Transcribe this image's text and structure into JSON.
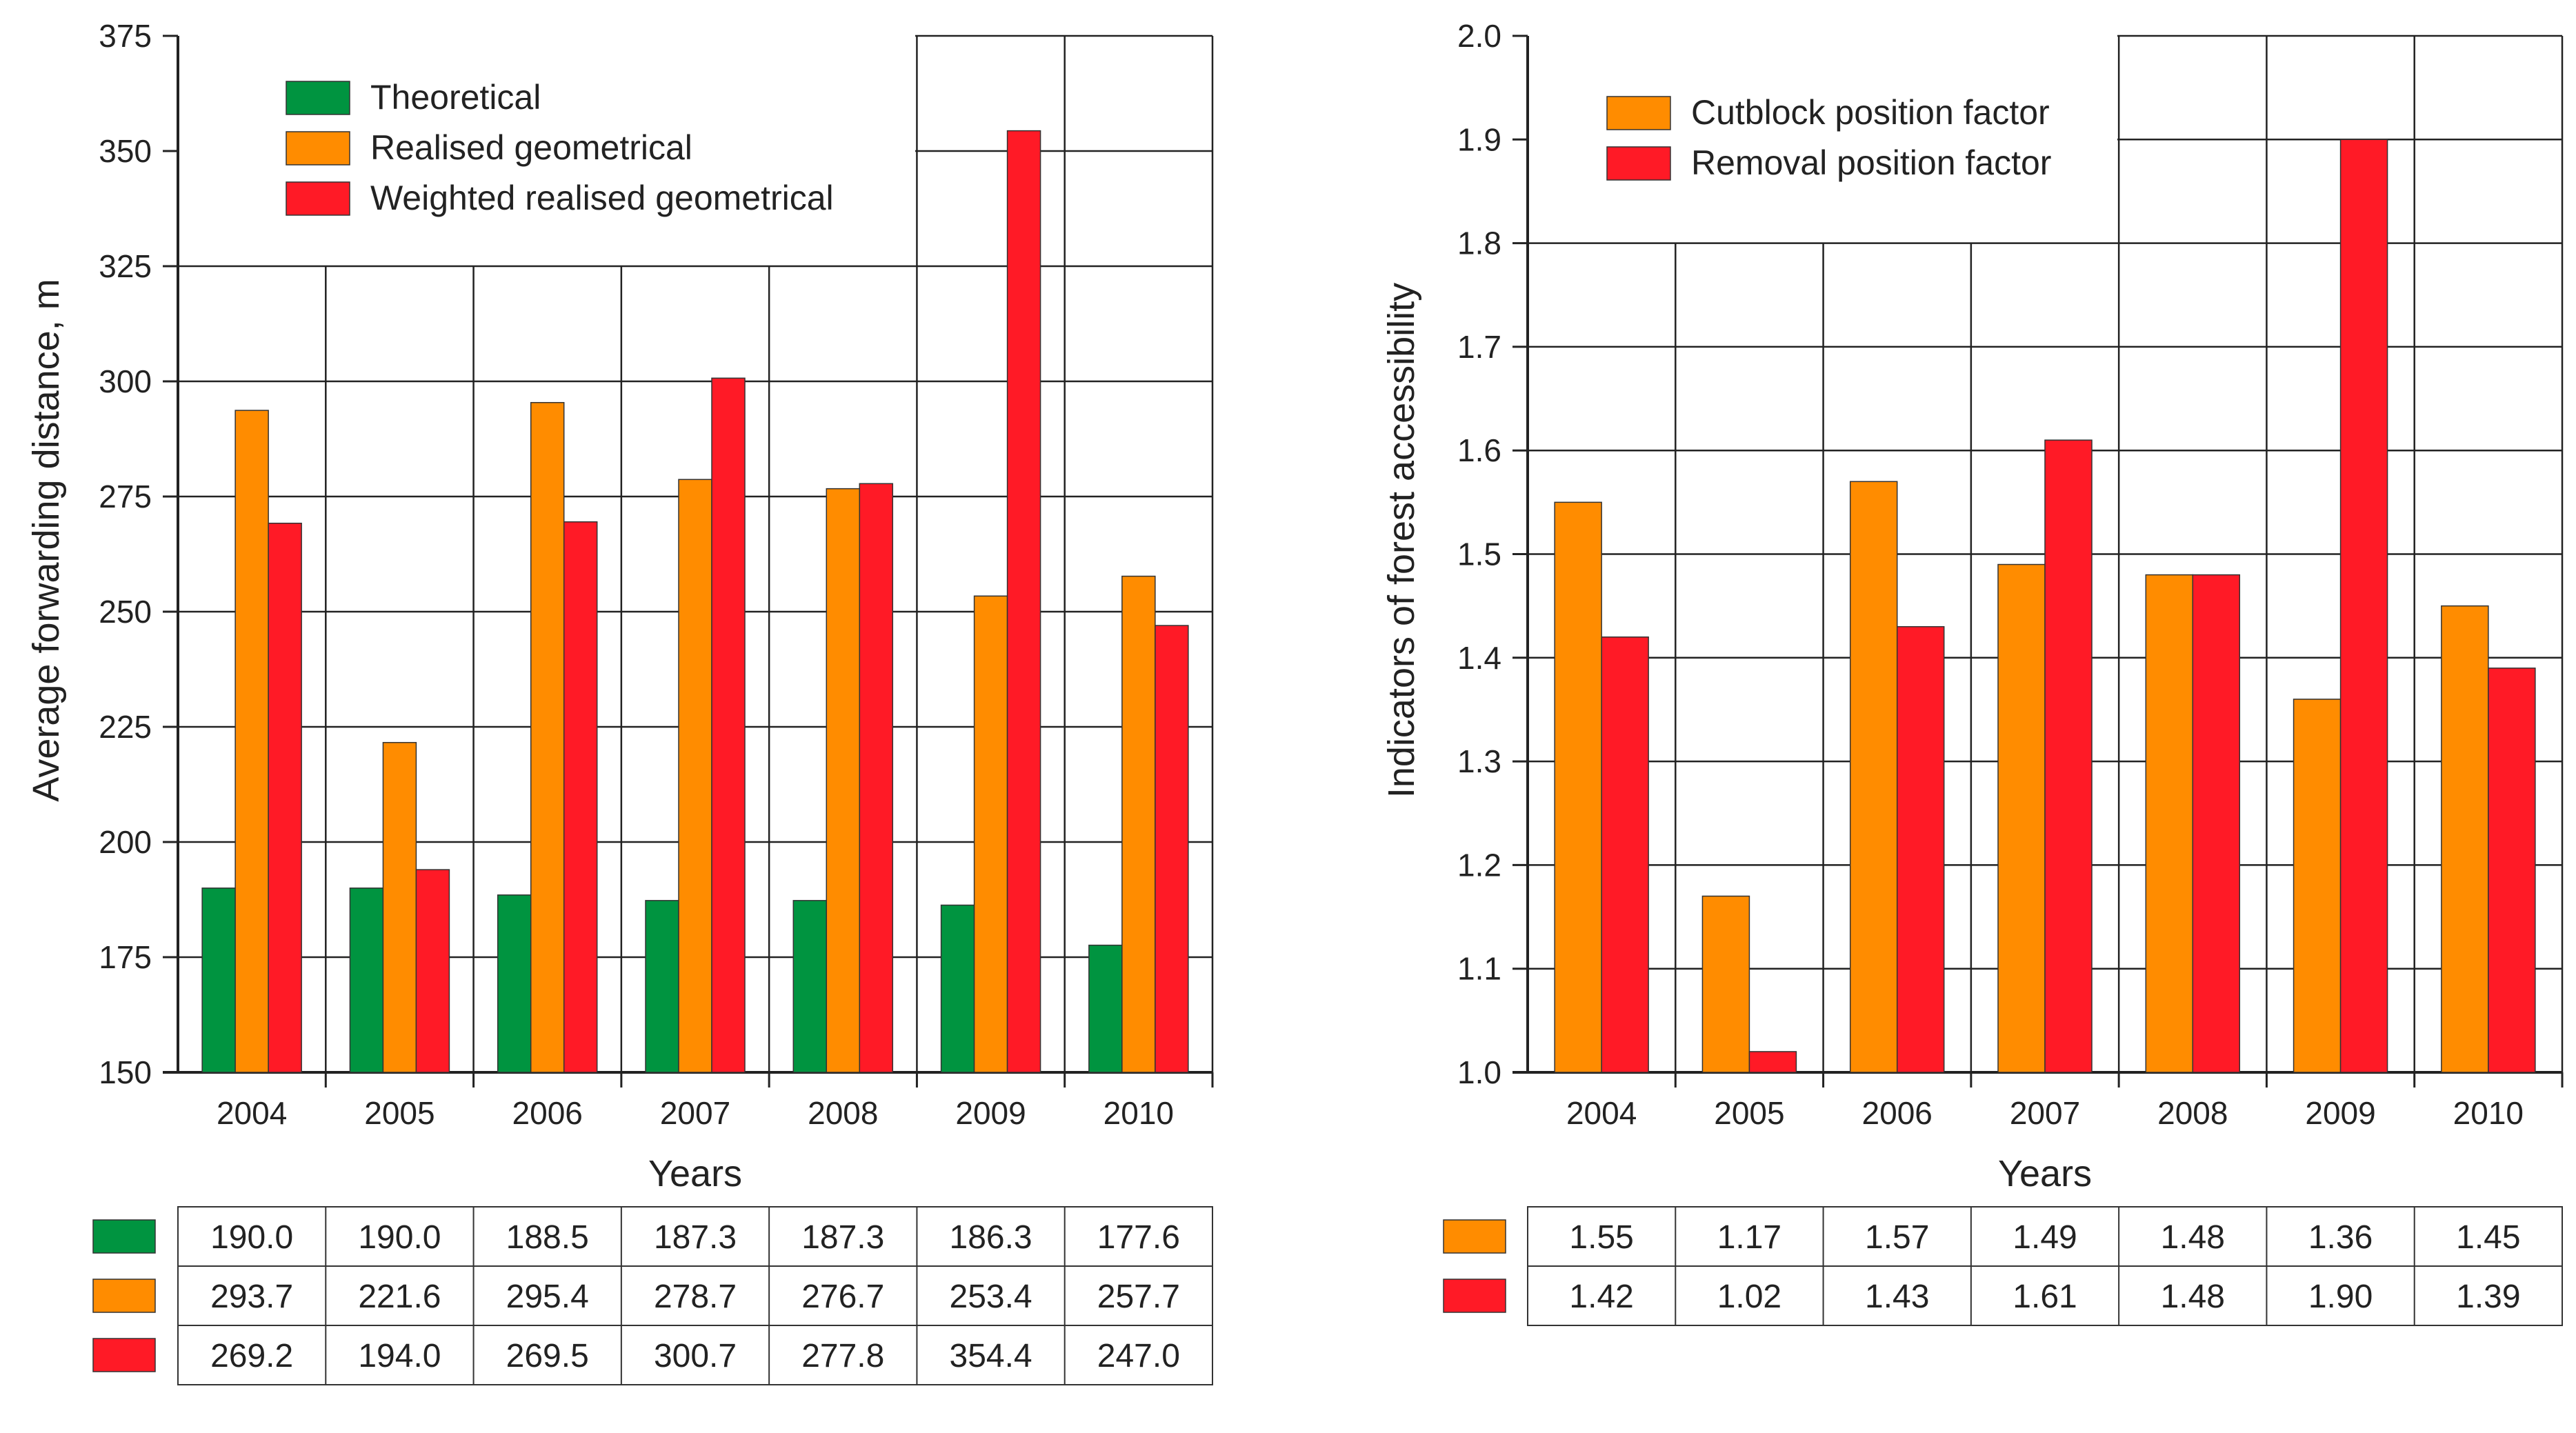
{
  "colors": {
    "green": "#009440",
    "orange": "#ff8c00",
    "red": "#ff1a26",
    "grid": "#222222"
  },
  "chart_data": [
    {
      "type": "bar",
      "categories": [
        "2004",
        "2005",
        "2006",
        "2007",
        "2008",
        "2009",
        "2010"
      ],
      "series": [
        {
          "name": "Theoretical",
          "color_key": "green",
          "values": [
            190.0,
            190.0,
            188.5,
            187.3,
            187.3,
            186.3,
            177.6
          ]
        },
        {
          "name": "Realised geometrical",
          "color_key": "orange",
          "values": [
            293.7,
            221.6,
            295.4,
            278.7,
            276.7,
            253.4,
            257.7
          ]
        },
        {
          "name": "Weighted realised geometrical",
          "color_key": "red",
          "values": [
            269.2,
            194.0,
            269.5,
            300.7,
            277.8,
            354.4,
            247.0
          ]
        }
      ],
      "xlabel": "Years",
      "ylabel": "Average forwarding distance, m",
      "ylim": [
        150,
        375
      ],
      "yticks": [
        "150",
        "175",
        "200",
        "225",
        "250",
        "275",
        "300",
        "325",
        "350",
        "375"
      ],
      "table": [
        [
          "190.0",
          "190.0",
          "188.5",
          "187.3",
          "187.3",
          "186.3",
          "177.6"
        ],
        [
          "293.7",
          "221.6",
          "295.4",
          "278.7",
          "276.7",
          "253.4",
          "257.7"
        ],
        [
          "269.2",
          "194.0",
          "269.5",
          "300.7",
          "277.8",
          "354.4",
          "247.0"
        ]
      ],
      "legend": "top-left"
    },
    {
      "type": "bar",
      "categories": [
        "2004",
        "2005",
        "2006",
        "2007",
        "2008",
        "2009",
        "2010"
      ],
      "series": [
        {
          "name": "Cutblock position factor",
          "color_key": "orange",
          "values": [
            1.55,
            1.17,
            1.57,
            1.49,
            1.48,
            1.36,
            1.45
          ]
        },
        {
          "name": "Removal position factor",
          "color_key": "red",
          "values": [
            1.42,
            1.02,
            1.43,
            1.61,
            1.48,
            1.9,
            1.39
          ]
        }
      ],
      "xlabel": "Years",
      "ylabel": "Indicators of forest accessibility",
      "ylim": [
        1.0,
        2.0
      ],
      "yticks": [
        "1.0",
        "1.1",
        "1.2",
        "1.3",
        "1.4",
        "1.5",
        "1.6",
        "1.7",
        "1.8",
        "1.9",
        "2.0"
      ],
      "table": [
        [
          "1.55",
          "1.17",
          "1.57",
          "1.49",
          "1.48",
          "1.36",
          "1.45"
        ],
        [
          "1.42",
          "1.02",
          "1.43",
          "1.61",
          "1.48",
          "1.90",
          "1.39"
        ]
      ],
      "legend": "top-left"
    }
  ]
}
